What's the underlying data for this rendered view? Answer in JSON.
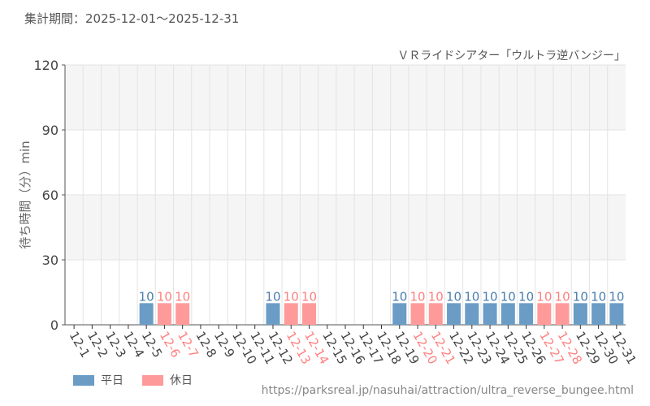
{
  "period_label": "集計期間：2025-12-01～2025-12-31",
  "source_url": "https://parksreal.jp/nasuhai/attraction/ultra_reverse_bungee.html",
  "chart_data": {
    "type": "bar",
    "title": "ＶＲライドシアター「ウルトラ逆バンジー」",
    "ylabel": "待ち時間（分）min",
    "ylim": [
      0,
      120
    ],
    "yticks": [
      0,
      30,
      60,
      90,
      120
    ],
    "grid": true,
    "legend_placement": "bottom-left",
    "legend": [
      {
        "name": "平日",
        "color": "#6a9cc6"
      },
      {
        "name": "休日",
        "color": "#ff9a9a"
      }
    ],
    "categories": [
      "12-1",
      "12-2",
      "12-3",
      "12-4",
      "12-5",
      "12-6",
      "12-7",
      "12-8",
      "12-9",
      "12-10",
      "12-11",
      "12-12",
      "12-13",
      "12-14",
      "12-15",
      "12-16",
      "12-17",
      "12-18",
      "12-19",
      "12-20",
      "12-21",
      "12-22",
      "12-23",
      "12-24",
      "12-25",
      "12-26",
      "12-27",
      "12-28",
      "12-29",
      "12-30",
      "12-31"
    ],
    "holiday": [
      false,
      false,
      false,
      false,
      false,
      true,
      true,
      false,
      false,
      false,
      false,
      false,
      true,
      true,
      false,
      false,
      false,
      false,
      false,
      true,
      true,
      false,
      false,
      false,
      false,
      false,
      true,
      true,
      false,
      false,
      false
    ],
    "values": [
      null,
      null,
      null,
      null,
      10,
      10,
      10,
      null,
      null,
      null,
      null,
      10,
      10,
      10,
      null,
      null,
      null,
      null,
      10,
      10,
      10,
      10,
      10,
      10,
      10,
      10,
      10,
      10,
      10,
      10,
      10
    ]
  }
}
